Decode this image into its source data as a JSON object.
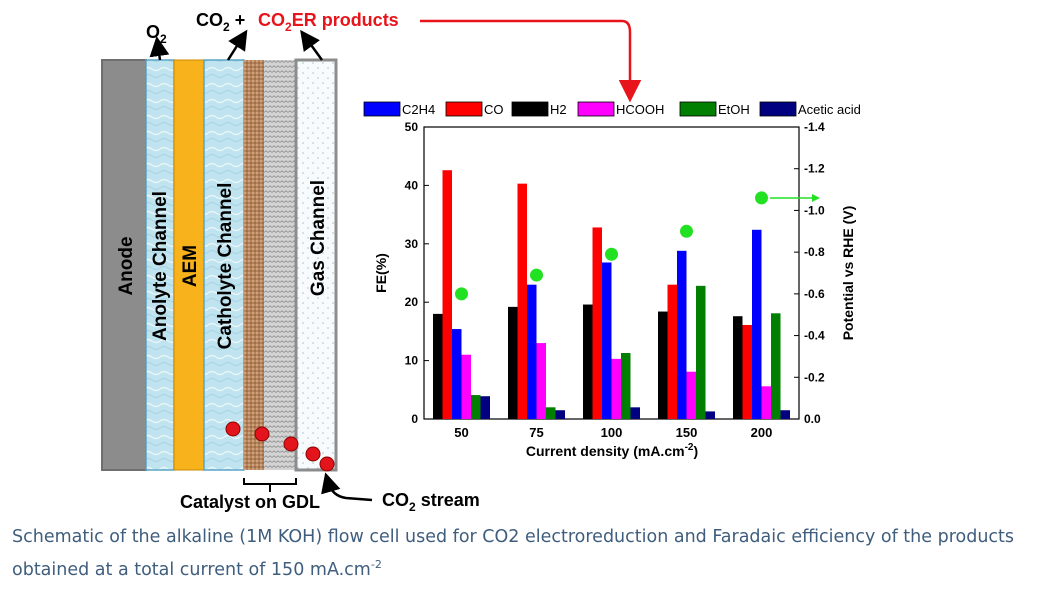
{
  "diagram": {
    "top_labels": {
      "o2": "O",
      "o2_sub": "2",
      "co2": "CO",
      "co2_sub": "2",
      "plus": "+",
      "products_main": "CO",
      "products_sub": "2",
      "products_tail": "ER products"
    },
    "layers": [
      {
        "key": "anode",
        "label": "Anode"
      },
      {
        "key": "anolyte",
        "label": "Anolyte Channel"
      },
      {
        "key": "aem",
        "label": "AEM"
      },
      {
        "key": "catholyte",
        "label": "Catholyte Channel"
      },
      {
        "key": "gas",
        "label": "Gas Channel"
      }
    ],
    "bottom_labels": {
      "catalyst": "Catalyst on GDL",
      "stream_main": "CO",
      "stream_sub": "2",
      "stream_tail": " stream"
    },
    "colors": {
      "anode": "#8c8c8c",
      "channel": "#bfe3ef",
      "aem": "#f7b21c",
      "catalyst": "#b7835b",
      "gdl": "#cfcfcf",
      "gas": "#f7fbfd",
      "bubble": "#e3141b",
      "red_label": "#e8141b"
    }
  },
  "chart_data": {
    "type": "bar",
    "categories": [
      "50",
      "75",
      "100",
      "150",
      "200"
    ],
    "series": [
      {
        "name": "H2",
        "color": "#000000",
        "values": [
          18,
          19.2,
          19.6,
          18.4,
          17.6
        ]
      },
      {
        "name": "CO",
        "color": "#ff0000",
        "values": [
          42.6,
          40.3,
          32.8,
          23,
          16.1
        ]
      },
      {
        "name": "C2H4",
        "color": "#0000ff",
        "values": [
          15.4,
          23,
          26.8,
          28.8,
          32.4
        ]
      },
      {
        "name": "HCOOH",
        "color": "#ff00ff",
        "values": [
          11,
          13,
          10.3,
          8.1,
          5.6
        ]
      },
      {
        "name": "EtOH",
        "color": "#007f00",
        "values": [
          4.1,
          2,
          11.3,
          22.8,
          18.1
        ]
      },
      {
        "name": "Acetic acid",
        "color": "#000080",
        "values": [
          3.9,
          1.5,
          2,
          1.3,
          1.5
        ]
      }
    ],
    "legend_order": [
      "C2H4",
      "CO",
      "H2",
      "HCOOH",
      "EtOH",
      "Acetic acid"
    ],
    "potential": {
      "color": "#22e022",
      "values": [
        -0.6,
        -0.69,
        -0.79,
        -0.9,
        -1.06
      ]
    },
    "xlabel": "Current density (mA.cm",
    "xlabel_sup": "-2",
    "xlabel_end": ")",
    "ylabel": "FE(%)",
    "y2label": "Potential vs RHE (V)",
    "ylim": [
      0,
      50
    ],
    "yticks": [
      "0",
      "10",
      "20",
      "30",
      "40",
      "50"
    ],
    "y2lim": [
      0,
      -1.4
    ],
    "y2ticks": [
      "0.0",
      "-0.2",
      "-0.4",
      "-0.6",
      "-0.8",
      "-1.0",
      "-1.2",
      "-1.4"
    ],
    "legend_placement": "top"
  },
  "caption": {
    "text": "Schematic of the alkaline (1M KOH) flow cell used for CO2 electroreduction and Faradaic efficiency of the products obtained at a total current of 150 mA.cm",
    "sup": "-2"
  }
}
